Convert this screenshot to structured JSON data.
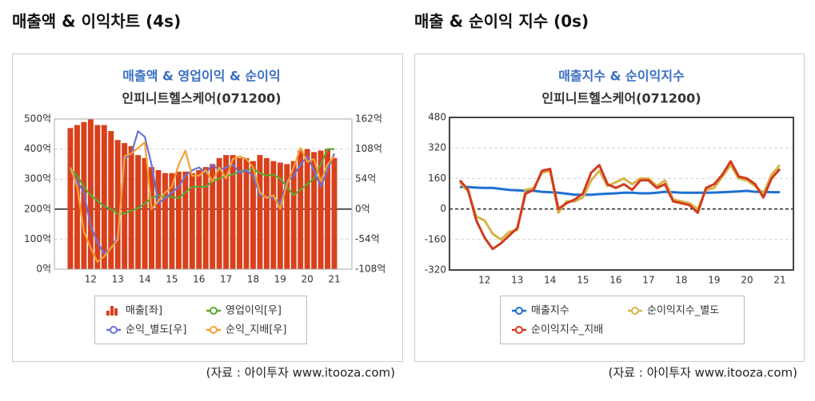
{
  "sections": [
    {
      "title": "매출액 & 이익차트 (4s)",
      "source": "(자료 : 아이투자 www.itooza.com)"
    },
    {
      "title": "매출 & 순이익 지수 (0s)",
      "source": "(자료 : 아이투자 www.itooza.com)"
    }
  ],
  "chart_data": [
    {
      "type": "bar",
      "title": "매출액 & 영업이익 & 순이익",
      "subtitle": "인피니트헬스케어(071200)",
      "categories": [
        null,
        null,
        null,
        "12",
        null,
        null,
        null,
        "13",
        null,
        null,
        null,
        "14",
        null,
        null,
        null,
        "15",
        null,
        null,
        null,
        "16",
        null,
        null,
        null,
        "17",
        null,
        null,
        null,
        "18",
        null,
        null,
        null,
        "19",
        null,
        null,
        null,
        "20",
        null,
        null,
        null,
        "21"
      ],
      "ylim": [
        0,
        500
      ],
      "yticks": [
        {
          "value": 0,
          "label": "0억"
        },
        {
          "value": 100,
          "label": "100억"
        },
        {
          "value": 200,
          "label": "200억"
        },
        {
          "value": 300,
          "label": "300억"
        },
        {
          "value": 400,
          "label": "400억"
        },
        {
          "value": 500,
          "label": "500억"
        }
      ],
      "y2lim": [
        -108,
        162
      ],
      "y2ticks": [
        {
          "value": -108,
          "label": "-108억"
        },
        {
          "value": -54,
          "label": "-54억"
        },
        {
          "value": 0,
          "label": "0억"
        },
        {
          "value": 54,
          "label": "54억"
        },
        {
          "value": 108,
          "label": "108억"
        },
        {
          "value": 162,
          "label": "162억"
        }
      ],
      "grid": true,
      "legend": "bottom",
      "series": [
        {
          "name": "매출[좌]",
          "type": "bar",
          "color": "#d9401c",
          "values": [
            470,
            480,
            490,
            500,
            480,
            480,
            460,
            430,
            420,
            410,
            380,
            370,
            340,
            330,
            320,
            320,
            325,
            325,
            320,
            330,
            340,
            350,
            370,
            380,
            380,
            370,
            370,
            360,
            380,
            370,
            360,
            355,
            350,
            360,
            395,
            400,
            390,
            395,
            400,
            370
          ]
        },
        {
          "name": "영업이익[우]",
          "type": "line",
          "axis": "y2",
          "color": "#5aa832",
          "values": [
            72,
            60,
            40,
            25,
            15,
            5,
            0,
            -8,
            -8,
            -3,
            2,
            10,
            20,
            25,
            22,
            22,
            20,
            30,
            40,
            40,
            40,
            50,
            55,
            60,
            62,
            68,
            70,
            72,
            65,
            60,
            62,
            55,
            40,
            25,
            35,
            45,
            55,
            80,
            108,
            108
          ]
        },
        {
          "name": "순익_별도[우]",
          "type": "line",
          "axis": "y2",
          "color": "#6b72d6",
          "values": [
            70,
            50,
            30,
            -30,
            -60,
            -80,
            -70,
            -50,
            90,
            100,
            140,
            130,
            80,
            10,
            20,
            30,
            40,
            60,
            70,
            75,
            65,
            80,
            70,
            75,
            80,
            65,
            70,
            60,
            25,
            22,
            20,
            10,
            50,
            60,
            80,
            95,
            70,
            40,
            70,
            100
          ]
        },
        {
          "name": "순익_지배[우]",
          "type": "line",
          "axis": "y2",
          "color": "#f5a033",
          "values": [
            75,
            40,
            -40,
            -70,
            -95,
            -85,
            -70,
            -55,
            95,
            100,
            110,
            120,
            0,
            15,
            30,
            40,
            80,
            105,
            60,
            60,
            70,
            50,
            75,
            55,
            90,
            95,
            90,
            75,
            30,
            20,
            25,
            0,
            45,
            75,
            110,
            85,
            90,
            50,
            80,
            95
          ]
        }
      ]
    },
    {
      "type": "line",
      "title": "매출지수 & 순이익지수",
      "subtitle": "인피니트헬스케어(071200)",
      "categories": [
        null,
        null,
        null,
        "12",
        null,
        null,
        null,
        "13",
        null,
        null,
        null,
        "14",
        null,
        null,
        null,
        "15",
        null,
        null,
        null,
        "16",
        null,
        null,
        null,
        "17",
        null,
        null,
        null,
        "18",
        null,
        null,
        null,
        "19",
        null,
        null,
        null,
        "20",
        null,
        null,
        null,
        "21"
      ],
      "ylim": [
        -320,
        480
      ],
      "yticks": [
        -320,
        -160,
        0,
        160,
        320,
        480
      ],
      "grid": true,
      "legend": "bottom",
      "series": [
        {
          "name": "매출지수",
          "type": "line",
          "color": "#1f6fd1",
          "values": [
            115,
            115,
            112,
            110,
            110,
            105,
            100,
            98,
            95,
            95,
            90,
            88,
            85,
            80,
            75,
            75,
            75,
            78,
            80,
            82,
            85,
            85,
            82,
            82,
            85,
            90,
            88,
            85,
            85,
            85,
            85,
            86,
            88,
            90,
            92,
            95,
            90,
            90,
            88,
            88
          ]
        },
        {
          "name": "순이익지수_별도",
          "type": "line",
          "color": "#d6b44b",
          "values": [
            140,
            90,
            -40,
            -60,
            -130,
            -160,
            -120,
            -110,
            100,
            110,
            190,
            200,
            -20,
            40,
            40,
            60,
            150,
            200,
            120,
            140,
            160,
            130,
            160,
            160,
            120,
            150,
            50,
            40,
            30,
            0,
            100,
            110,
            170,
            230,
            160,
            150,
            120,
            80,
            180,
            230
          ]
        },
        {
          "name": "순이익지수_지배",
          "type": "line",
          "color": "#d23a1e",
          "values": [
            150,
            100,
            -60,
            -150,
            -210,
            -180,
            -140,
            -100,
            80,
            100,
            200,
            210,
            0,
            30,
            50,
            80,
            190,
            230,
            130,
            110,
            130,
            100,
            150,
            150,
            110,
            130,
            40,
            30,
            20,
            -20,
            110,
            130,
            180,
            250,
            170,
            160,
            130,
            60,
            160,
            210
          ]
        }
      ]
    }
  ]
}
